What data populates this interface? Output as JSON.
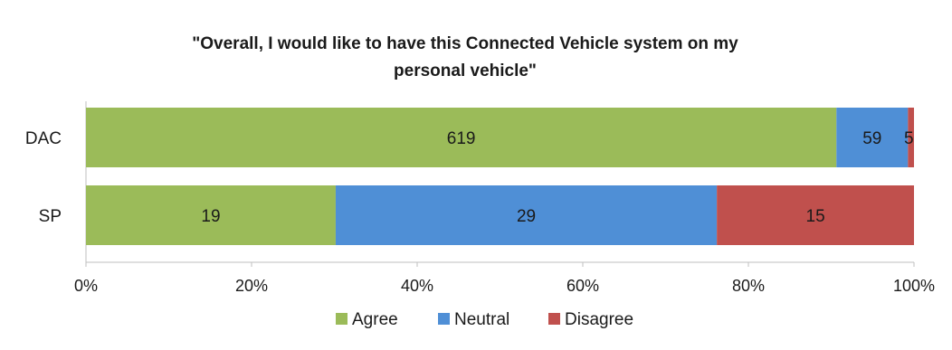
{
  "chart_data": {
    "type": "bar",
    "orientation": "horizontal",
    "stacking": "percent",
    "title": "\"Overall, I would like to have this Connected Vehicle system on my personal vehicle\"",
    "title_lines": [
      "\"Overall, I would like to have this Connected Vehicle system on my",
      "personal vehicle\""
    ],
    "categories": [
      "DAC",
      "SP"
    ],
    "series": [
      {
        "name": "Agree",
        "color": "#9bbb59",
        "values": [
          619,
          19
        ]
      },
      {
        "name": "Neutral",
        "color": "#4f8fd6",
        "values": [
          59,
          29
        ]
      },
      {
        "name": "Disagree",
        "color": "#c0504d",
        "values": [
          5,
          15
        ]
      }
    ],
    "x_ticks": [
      "0%",
      "20%",
      "40%",
      "60%",
      "80%",
      "100%"
    ],
    "xlim": [
      0,
      100
    ],
    "grid": false,
    "legend_position": "bottom"
  }
}
